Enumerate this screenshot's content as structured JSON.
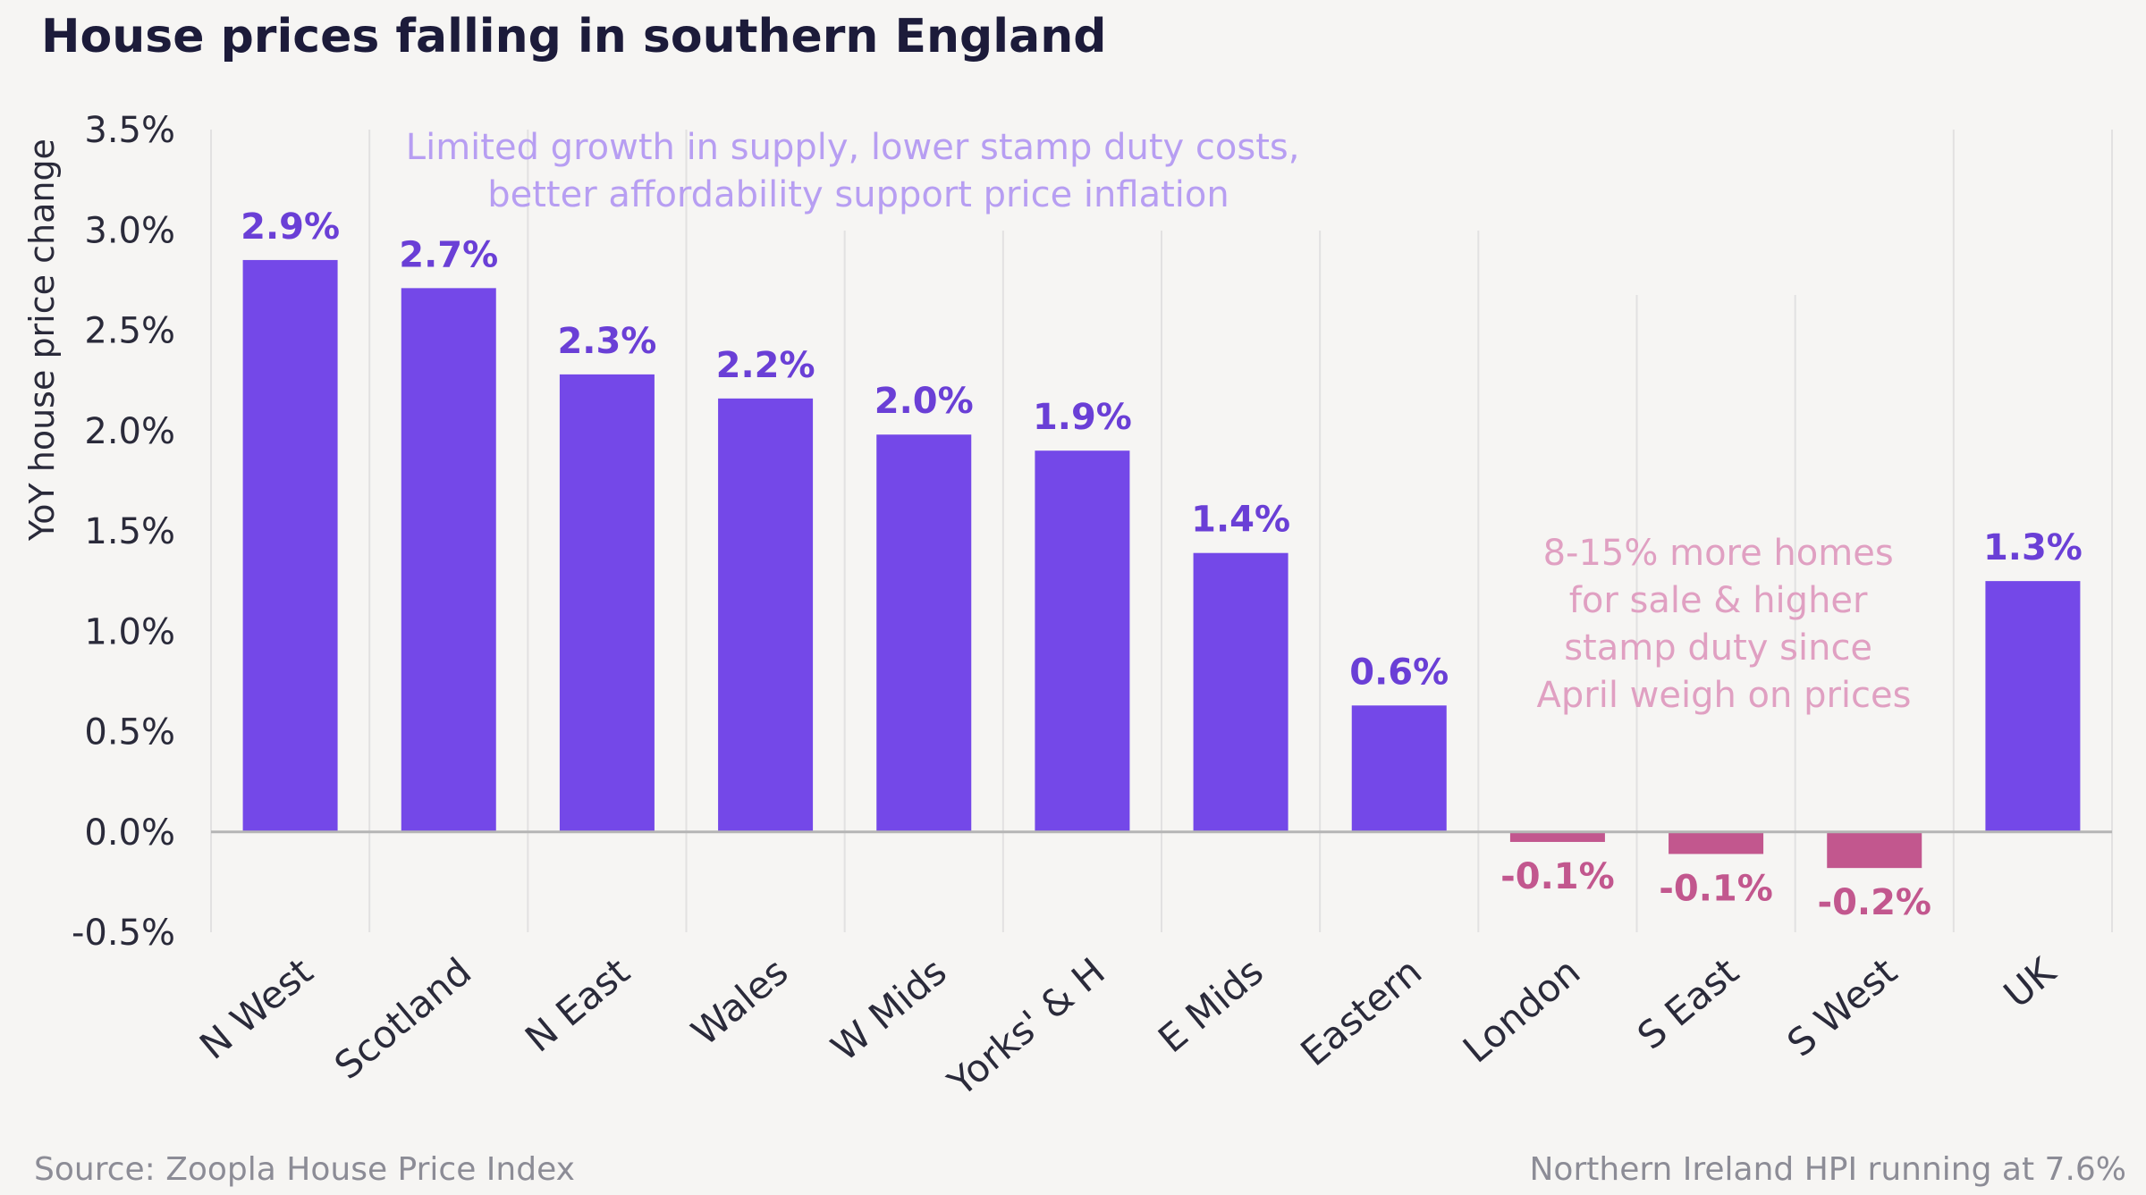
{
  "chart_data": {
    "type": "bar",
    "title": "House prices falling in southern England",
    "ylabel": "YoY house price change",
    "xlabel": "",
    "ylim": [
      -0.5,
      3.5
    ],
    "yticks": [
      3.5,
      3.0,
      2.5,
      2.0,
      1.5,
      1.0,
      0.5,
      0.0,
      -0.5
    ],
    "ytick_labels": [
      "3.5%",
      "3.0%",
      "2.5%",
      "2.0%",
      "1.5%",
      "1.0%",
      "0.5%",
      "0.0%",
      "-0.5%"
    ],
    "categories": [
      "N West",
      "Scotland",
      "N East",
      "Wales",
      "W Mids",
      "Yorks' & H",
      "E Mids",
      "Eastern",
      "London",
      "S East",
      "S West",
      "UK"
    ],
    "values": [
      2.85,
      2.71,
      2.28,
      2.16,
      1.98,
      1.9,
      1.39,
      0.63,
      -0.05,
      -0.11,
      -0.18,
      1.25
    ],
    "value_labels": [
      "2.9%",
      "2.7%",
      "2.3%",
      "2.2%",
      "2.0%",
      "1.9%",
      "1.4%",
      "0.6%",
      "-0.1%",
      "-0.1%",
      "-0.2%",
      "1.3%"
    ],
    "grid": "vertical",
    "annotations": [
      {
        "text_lines": [
          "Limited growth in supply, lower stamp duty costs,",
          "better affordability support price inflation"
        ],
        "color": "#b79ef2"
      },
      {
        "text_lines": [
          "8-15% more homes",
          "for sale & higher",
          "stamp duty since",
          "April weigh on prices"
        ],
        "color": "#e0a0c2"
      }
    ]
  },
  "footer": {
    "source": "Source: Zoopla House Price Index",
    "note": "Northern Ireland HPI running at 7.6%"
  },
  "colors": {
    "positive_bar": "#7448e8",
    "negative_bar": "#c2578e",
    "positive_label": "#6a3fd6",
    "negative_label": "#c2578e",
    "grid": "#e2e1e1",
    "axis": "#b5b5b5",
    "text": "#2a2a3a"
  }
}
